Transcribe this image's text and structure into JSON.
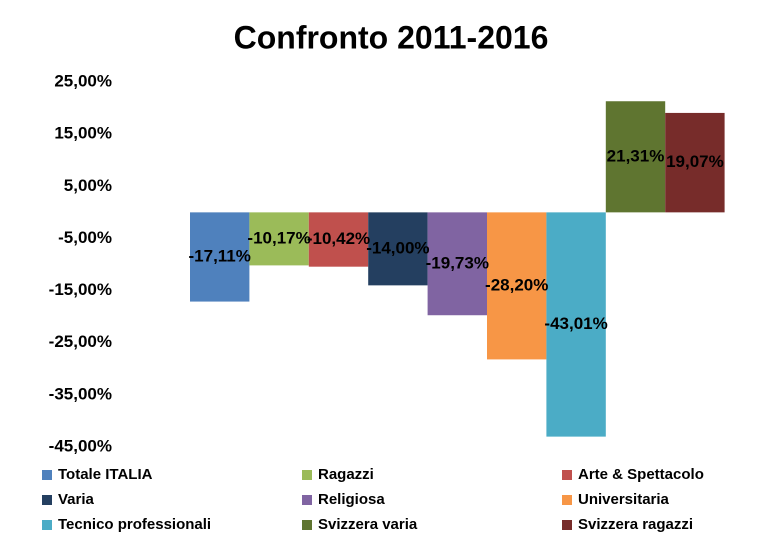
{
  "chart_data": {
    "type": "bar",
    "title": "Confronto 2011-2016",
    "categories": [
      null
    ],
    "series": [
      {
        "name": "Totale ITALIA",
        "color": "#4f81bd",
        "values": [
          -17.11
        ],
        "value_labels": [
          "-17,11%"
        ]
      },
      {
        "name": "Ragazzi",
        "color": "#9bbb59",
        "values": [
          -10.17
        ],
        "value_labels": [
          "-10,17%"
        ]
      },
      {
        "name": "Arte & Spettacolo",
        "color": "#c0504d",
        "values": [
          -10.42
        ],
        "value_labels": [
          "-10,42%"
        ]
      },
      {
        "name": "Varia",
        "color": "#243f60",
        "values": [
          -14.0
        ],
        "value_labels": [
          "-14,00%"
        ]
      },
      {
        "name": "Religiosa",
        "color": "#8064a2",
        "values": [
          -19.73
        ],
        "value_labels": [
          "-19,73%"
        ]
      },
      {
        "name": "Universitaria",
        "color": "#f79646",
        "values": [
          -28.2
        ],
        "value_labels": [
          "-28,20%"
        ]
      },
      {
        "name": "Tecnico professionali",
        "color": "#4bacc6",
        "values": [
          -43.01
        ],
        "value_labels": [
          "-43,01%"
        ]
      },
      {
        "name": "Svizzera varia",
        "color": "#5f7530",
        "values": [
          21.31
        ],
        "value_labels": [
          "21,31%"
        ]
      },
      {
        "name": "Svizzera ragazzi",
        "color": "#772c2a",
        "values": [
          19.07
        ],
        "value_labels": [
          "19,07%"
        ]
      }
    ],
    "ylim": [
      -45,
      25
    ],
    "yticks": [
      {
        "value": 25,
        "label": "25,00%"
      },
      {
        "value": 15,
        "label": "15,00%"
      },
      {
        "value": 5,
        "label": "5,00%"
      },
      {
        "value": -5,
        "label": "-5,00%"
      },
      {
        "value": -15,
        "label": "-15,00%"
      },
      {
        "value": -25,
        "label": "-25,00%"
      },
      {
        "value": -35,
        "label": "-35,00%"
      },
      {
        "value": -45,
        "label": "-45,00%"
      }
    ],
    "grid": false,
    "legend": "bottom"
  }
}
